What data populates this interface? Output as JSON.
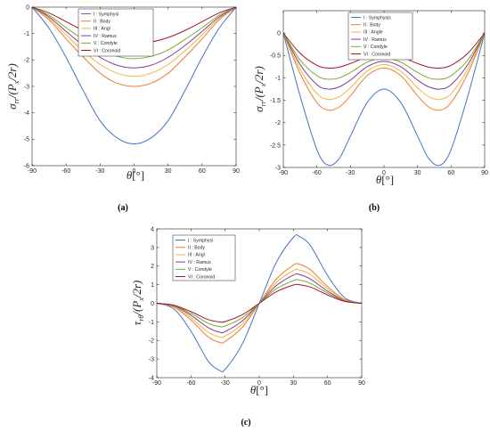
{
  "colors": {
    "I": "#4472c4",
    "II": "#ed7d31",
    "III": "#f2b33d",
    "IV": "#7e3f98",
    "V": "#77ac30",
    "VI": "#a2142f"
  },
  "chart_data": [
    {
      "type": "line",
      "caption": "(a)",
      "xlabel": "θ[°]",
      "ylabel": "σrr/(Px/2r)",
      "xlim": [
        -90,
        90
      ],
      "ylim": [
        -6,
        0
      ],
      "xticks": [
        "-90",
        "-60",
        "-30",
        "0",
        "30",
        "60",
        "90"
      ],
      "yticks": [
        "0",
        "-1",
        "-2",
        "-3",
        "-4",
        "-5",
        "-6"
      ],
      "legend_position": "top-center",
      "series": [
        {
          "name": "I : Symphysi",
          "color_key": "I",
          "x": [
            -90,
            -75,
            -60,
            -45,
            -30,
            -15,
            0,
            15,
            30,
            45,
            60,
            75,
            90
          ],
          "y": [
            0,
            -0.8,
            -1.9,
            -3.15,
            -4.3,
            -4.95,
            -5.18,
            -4.95,
            -4.3,
            -3.15,
            -1.9,
            -0.8,
            0
          ]
        },
        {
          "name": "II : Body",
          "color_key": "II",
          "x": [
            -90,
            -75,
            -60,
            -45,
            -30,
            -15,
            0,
            15,
            30,
            45,
            60,
            75,
            90
          ],
          "y": [
            0,
            -0.48,
            -1.2,
            -1.88,
            -2.5,
            -2.88,
            -3.0,
            -2.88,
            -2.5,
            -1.88,
            -1.2,
            -0.48,
            0
          ]
        },
        {
          "name": "III : Angl",
          "color_key": "III",
          "x": [
            -90,
            -75,
            -60,
            -45,
            -30,
            -15,
            0,
            15,
            30,
            45,
            60,
            75,
            90
          ],
          "y": [
            0,
            -0.42,
            -1.05,
            -1.65,
            -2.17,
            -2.5,
            -2.62,
            -2.5,
            -2.17,
            -1.65,
            -1.05,
            -0.42,
            0
          ]
        },
        {
          "name": "IV : Ramus",
          "color_key": "IV",
          "x": [
            -90,
            -75,
            -60,
            -45,
            -30,
            -15,
            0,
            15,
            30,
            45,
            60,
            75,
            90
          ],
          "y": [
            0,
            -0.37,
            -0.92,
            -1.45,
            -1.9,
            -2.2,
            -2.3,
            -2.2,
            -1.9,
            -1.45,
            -0.92,
            -0.37,
            0
          ]
        },
        {
          "name": "V : Condyle",
          "color_key": "V",
          "x": [
            -90,
            -75,
            -60,
            -45,
            -30,
            -15,
            0,
            15,
            30,
            45,
            60,
            75,
            90
          ],
          "y": [
            0,
            -0.31,
            -0.78,
            -1.22,
            -1.62,
            -1.86,
            -1.95,
            -1.86,
            -1.62,
            -1.22,
            -0.78,
            -0.31,
            0
          ]
        },
        {
          "name": "VI : Coronoid",
          "color_key": "VI",
          "x": [
            -90,
            -75,
            -60,
            -45,
            -30,
            -15,
            0,
            15,
            30,
            45,
            60,
            75,
            90
          ],
          "y": [
            0,
            -0.22,
            -0.55,
            -0.88,
            -1.15,
            -1.32,
            -1.38,
            -1.32,
            -1.15,
            -0.88,
            -0.55,
            -0.22,
            0
          ]
        }
      ]
    },
    {
      "type": "line",
      "caption": "(b)",
      "xlabel": "θ[°]",
      "ylabel": "σrr/(Px/2r)",
      "xlim": [
        -90,
        90
      ],
      "ylim": [
        -3,
        0.5
      ],
      "xticks": [
        "-90",
        "-60",
        "-30",
        "0",
        "30",
        "60",
        "90"
      ],
      "yticks": [
        "0",
        "-0.5",
        "-1",
        "-1.5",
        "-2",
        "-2.5",
        "-3"
      ],
      "legend_position": "top-center",
      "series": [
        {
          "name": "I : Symphysis",
          "color_key": "I",
          "x": [
            -90,
            -75,
            -60,
            -50,
            -40,
            -30,
            -15,
            0,
            15,
            30,
            40,
            50,
            60,
            75,
            90
          ],
          "y": [
            0,
            -1.4,
            -2.6,
            -2.95,
            -2.8,
            -2.3,
            -1.55,
            -1.25,
            -1.55,
            -2.3,
            -2.8,
            -2.95,
            -2.6,
            -1.4,
            0
          ]
        },
        {
          "name": "II : Body",
          "color_key": "II",
          "x": [
            -90,
            -75,
            -60,
            -50,
            -40,
            -30,
            -15,
            0,
            15,
            30,
            40,
            50,
            60,
            75,
            90
          ],
          "y": [
            0,
            -0.9,
            -1.55,
            -1.72,
            -1.65,
            -1.4,
            -0.95,
            -0.78,
            -0.95,
            -1.4,
            -1.65,
            -1.72,
            -1.55,
            -0.9,
            0
          ]
        },
        {
          "name": "III : Angle",
          "color_key": "III",
          "x": [
            -90,
            -75,
            -60,
            -50,
            -40,
            -30,
            -15,
            0,
            15,
            30,
            40,
            50,
            60,
            75,
            90
          ],
          "y": [
            0,
            -0.8,
            -1.35,
            -1.48,
            -1.42,
            -1.22,
            -0.85,
            -0.7,
            -0.85,
            -1.22,
            -1.42,
            -1.48,
            -1.35,
            -0.8,
            0
          ]
        },
        {
          "name": "IV : Ramus",
          "color_key": "IV",
          "x": [
            -90,
            -75,
            -60,
            -50,
            -40,
            -30,
            -15,
            0,
            15,
            30,
            40,
            50,
            60,
            75,
            90
          ],
          "y": [
            0,
            -0.7,
            -1.15,
            -1.25,
            -1.2,
            -1.05,
            -0.75,
            -0.63,
            -0.75,
            -1.05,
            -1.2,
            -1.25,
            -1.15,
            -0.7,
            0
          ]
        },
        {
          "name": "V : Condyle",
          "color_key": "V",
          "x": [
            -90,
            -75,
            -60,
            -50,
            -40,
            -30,
            -15,
            0,
            15,
            30,
            40,
            50,
            60,
            75,
            90
          ],
          "y": [
            0,
            -0.6,
            -0.95,
            -1.03,
            -1.0,
            -0.88,
            -0.65,
            -0.56,
            -0.65,
            -0.88,
            -1.0,
            -1.03,
            -0.95,
            -0.6,
            0
          ]
        },
        {
          "name": "VI : Coronoid",
          "color_key": "VI",
          "x": [
            -90,
            -75,
            -60,
            -50,
            -40,
            -30,
            -15,
            0,
            15,
            30,
            40,
            50,
            60,
            75,
            90
          ],
          "y": [
            0,
            -0.45,
            -0.72,
            -0.78,
            -0.76,
            -0.68,
            -0.53,
            -0.47,
            -0.53,
            -0.68,
            -0.76,
            -0.78,
            -0.72,
            -0.45,
            0
          ]
        }
      ]
    },
    {
      "type": "line",
      "caption": "(c)",
      "xlabel": "θ[°]",
      "ylabel": "τrθ/(Px/2r)",
      "xlim": [
        -90,
        90
      ],
      "ylim": [
        -4,
        4
      ],
      "xticks": [
        "-90",
        "-60",
        "-30",
        "0",
        "30",
        "60",
        "90"
      ],
      "yticks": [
        "4",
        "3",
        "2",
        "1",
        "0",
        "-1",
        "-2",
        "-3",
        "-4"
      ],
      "legend_position": "top-left",
      "series": [
        {
          "name": "I : Symphysi",
          "color_key": "I",
          "x": [
            -90,
            -75,
            -60,
            -45,
            -35,
            -30,
            -15,
            0,
            15,
            30,
            35,
            45,
            60,
            75,
            90
          ],
          "y": [
            0,
            -0.3,
            -1.5,
            -3.1,
            -3.6,
            -3.55,
            -2.2,
            0,
            2.2,
            3.55,
            3.6,
            3.1,
            1.5,
            0.3,
            0
          ]
        },
        {
          "name": "II : Body",
          "color_key": "II",
          "x": [
            -90,
            -75,
            -60,
            -45,
            -35,
            -30,
            -15,
            0,
            15,
            30,
            35,
            45,
            60,
            75,
            90
          ],
          "y": [
            0,
            -0.2,
            -0.9,
            -1.8,
            -2.1,
            -2.05,
            -1.3,
            0,
            1.3,
            2.05,
            2.1,
            1.8,
            0.9,
            0.2,
            0
          ]
        },
        {
          "name": "III : Angl",
          "color_key": "III",
          "x": [
            -90,
            -75,
            -60,
            -45,
            -35,
            -30,
            -15,
            0,
            15,
            30,
            35,
            45,
            60,
            75,
            90
          ],
          "y": [
            0,
            -0.17,
            -0.78,
            -1.55,
            -1.8,
            -1.76,
            -1.12,
            0,
            1.12,
            1.76,
            1.8,
            1.55,
            0.78,
            0.17,
            0
          ]
        },
        {
          "name": "IV : Ramus",
          "color_key": "IV",
          "x": [
            -90,
            -75,
            -60,
            -45,
            -35,
            -30,
            -15,
            0,
            15,
            30,
            35,
            45,
            60,
            75,
            90
          ],
          "y": [
            0,
            -0.14,
            -0.65,
            -1.3,
            -1.55,
            -1.52,
            -0.95,
            0,
            0.95,
            1.52,
            1.55,
            1.3,
            0.65,
            0.14,
            0
          ]
        },
        {
          "name": "V : Condyle",
          "color_key": "V",
          "x": [
            -90,
            -75,
            -60,
            -45,
            -35,
            -30,
            -15,
            0,
            15,
            30,
            35,
            45,
            60,
            75,
            90
          ],
          "y": [
            0,
            -0.12,
            -0.55,
            -1.07,
            -1.25,
            -1.22,
            -0.78,
            0,
            0.78,
            1.22,
            1.25,
            1.07,
            0.55,
            0.12,
            0
          ]
        },
        {
          "name": "VI : Coronoid",
          "color_key": "VI",
          "x": [
            -90,
            -75,
            -60,
            -45,
            -35,
            -30,
            -15,
            0,
            15,
            30,
            35,
            45,
            60,
            75,
            90
          ],
          "y": [
            0,
            -0.1,
            -0.45,
            -0.87,
            -1.0,
            -0.98,
            -0.62,
            0,
            0.62,
            0.98,
            1.0,
            0.87,
            0.45,
            0.1,
            0
          ]
        }
      ]
    }
  ]
}
